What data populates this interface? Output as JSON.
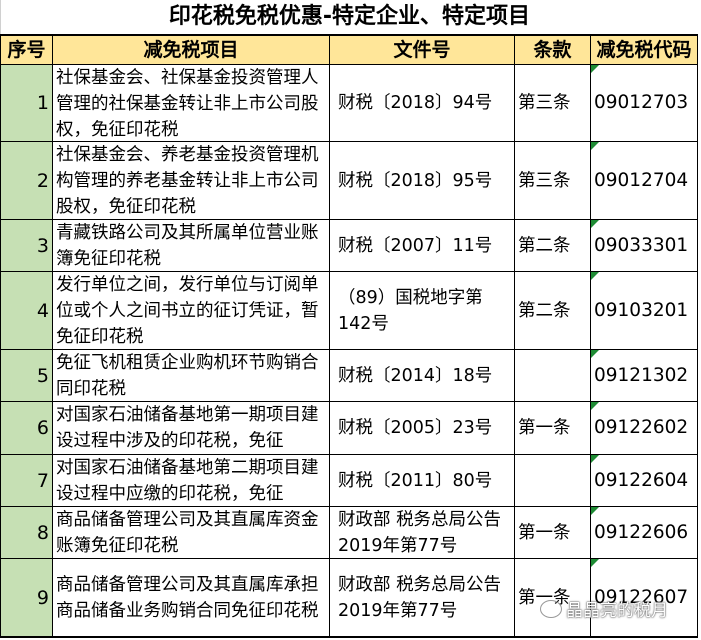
{
  "title": "印花税免税优惠-特定企业、特定项目",
  "headers": [
    "序号",
    "减免税项目",
    "文件号",
    "条款",
    "减免税代码"
  ],
  "rows": [
    {
      "seq": "1",
      "item": "社保基金会、社保基金投资管理人管理的社保基金转让非上市公司股权，免征印花税",
      "doc": "财税〔2018〕94号",
      "clause": "第三条",
      "code": "09012703"
    },
    {
      "seq": "2",
      "item": "社保基金会、养老基金投资管理机构管理的养老基金转让非上市公司股权，免征印花税",
      "doc": "财税〔2018〕95号",
      "clause": "第三条",
      "code": "09012704"
    },
    {
      "seq": "3",
      "item": "青藏铁路公司及其所属单位营业账簿免征印花税",
      "doc": "财税〔2007〕11号",
      "clause": "第二条",
      "code": "09033301"
    },
    {
      "seq": "4",
      "item": "发行单位之间，发行单位与订阅单位或个人之间书立的征订凭证，暂免征印花税",
      "doc": "（89）国税地字第142号",
      "clause": "第二条",
      "code": "09103201"
    },
    {
      "seq": "5",
      "item": "免征飞机租赁企业购机环节购销合同印花税",
      "doc": "财税〔2014〕18号",
      "clause": "",
      "code": "09121302"
    },
    {
      "seq": "6",
      "item": "对国家石油储备基地第一期项目建设过程中涉及的印花税，免征",
      "doc": "财税〔2005〕23号",
      "clause": "第一条",
      "code": "09122602"
    },
    {
      "seq": "7",
      "item": "对国家石油储备基地第二期项目建设过程中应缴的印花税，免征",
      "doc": "财税〔2011〕80号",
      "clause": "",
      "code": "09122604"
    },
    {
      "seq": "8",
      "item": "商品储备管理公司及其直属库资金账簿免征印花税",
      "doc": "财政部 税务总局公告2019年第77号",
      "clause": "第一条",
      "code": "09122606"
    },
    {
      "seq": "9",
      "item": "商品储备管理公司及其直属库承担商品储备业务购销合同免征印花税",
      "doc": "财政部 税务总局公告2019年第77号",
      "clause": "第一条",
      "code": "09122607"
    }
  ],
  "watermark": "晶晶亮的税月",
  "colors": {
    "header_bg": "#ffe699",
    "seq_bg": "#c6e0b4",
    "comment_marker": "#1e8b34"
  }
}
